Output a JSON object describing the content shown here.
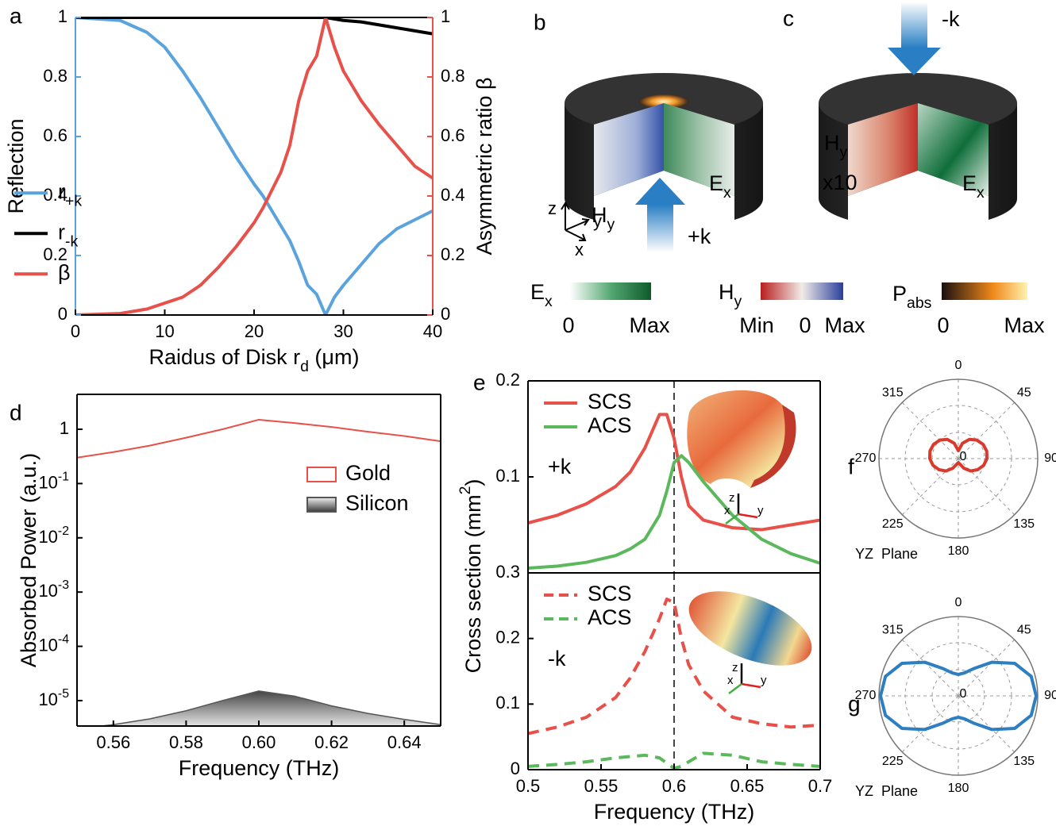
{
  "chart_data": [
    {
      "panel": "a",
      "type": "line",
      "x_label": {
        "text": "Raidus of Disk r",
        "sub": "d",
        "tail": " (μm)"
      },
      "y_label": "Reflection",
      "y2_label": "Asymmetric ratio β",
      "x": [
        0,
        5,
        8,
        10,
        12,
        14,
        16,
        18,
        20,
        21,
        22,
        23,
        24,
        25,
        26,
        27,
        28,
        29,
        30,
        32,
        34,
        36,
        38,
        40
      ],
      "series": [
        {
          "name": {
            "text": "r",
            "sub": "+k"
          },
          "color": "#5ba3dc",
          "values": [
            1,
            0.99,
            0.95,
            0.9,
            0.82,
            0.73,
            0.63,
            0.53,
            0.44,
            0.4,
            0.35,
            0.3,
            0.25,
            0.18,
            0.1,
            0.07,
            0,
            0.06,
            0.1,
            0.17,
            0.24,
            0.29,
            0.32,
            0.35
          ]
        },
        {
          "name": {
            "text": "r",
            "sub": "-k"
          },
          "color": "#000000",
          "values": [
            1,
            1,
            1,
            1,
            1,
            1,
            1,
            1,
            1,
            1,
            1,
            1,
            1,
            1,
            1,
            1,
            1,
            0.995,
            0.99,
            0.985,
            0.975,
            0.965,
            0.955,
            0.945
          ]
        },
        {
          "name": "β",
          "color": "#e8504a",
          "axis": "y2",
          "values": [
            0,
            0.005,
            0.02,
            0.04,
            0.06,
            0.1,
            0.16,
            0.23,
            0.31,
            0.36,
            0.42,
            0.48,
            0.57,
            0.72,
            0.82,
            0.87,
            1,
            0.9,
            0.82,
            0.72,
            0.64,
            0.57,
            0.5,
            0.46
          ]
        }
      ],
      "xlim": [
        0,
        40
      ],
      "xticks": [
        0,
        10,
        20,
        30,
        40
      ],
      "ylim": [
        0,
        1
      ],
      "yticks": [
        0,
        0.2,
        0.4,
        0.6,
        0.8,
        1
      ],
      "y2lim": [
        0,
        1
      ],
      "y2ticks": [
        0,
        0.2,
        0.4,
        0.6,
        0.8,
        1
      ],
      "ycolor": "#5ba3dc",
      "y2color": "#e8504a",
      "legend": "center-left"
    },
    {
      "panel": "d",
      "type": "line",
      "log_y": true,
      "x_label": "Frequency (THz)",
      "y_label": "Absorbed Power (a.u.)",
      "x": [
        0.55,
        0.56,
        0.57,
        0.58,
        0.59,
        0.6,
        0.61,
        0.62,
        0.63,
        0.64,
        0.65
      ],
      "series": [
        {
          "name": "Gold",
          "color": "#e8504a",
          "values": [
            0.3,
            0.38,
            0.5,
            0.7,
            1.0,
            1.5,
            1.3,
            1.1,
            0.9,
            0.75,
            0.6
          ]
        },
        {
          "name": "Silicon",
          "color": "#555555",
          "fill": true,
          "values": [
            3e-06,
            3.6e-06,
            4.6e-06,
            6.5e-06,
            1e-05,
            1.5e-05,
            1.2e-05,
            8e-06,
            5.8e-06,
            4.5e-06,
            3.6e-06
          ]
        }
      ],
      "xlim": [
        0.55,
        0.65
      ],
      "xticks": [
        0.56,
        0.58,
        {
          "value": 0.6,
          "label": "0.60"
        },
        0.62,
        0.64
      ],
      "ylim": [
        3.4e-06,
        4.4
      ],
      "yticks": [
        1,
        {
          "value": 0.1,
          "label": "10",
          "sup": "-1"
        },
        {
          "value": 0.01,
          "label": "10",
          "sup": "-2"
        },
        {
          "value": 0.001,
          "label": "10",
          "sup": "-3"
        },
        {
          "value": 0.0001,
          "label": "10",
          "sup": "-4"
        },
        {
          "value": 1e-05,
          "label": "10",
          "sup": "-5"
        }
      ],
      "legend": "upper-right",
      "legend_marker": "box"
    },
    {
      "panel": "e",
      "type": "line",
      "y_label": {
        "text": "Cross section (mm",
        "sup": "2",
        "tail": ")"
      },
      "annotation": "+k",
      "inset_axes": [
        "z",
        "x",
        "y"
      ],
      "x": [
        0.5,
        0.52,
        0.54,
        0.56,
        0.57,
        0.58,
        0.59,
        0.595,
        0.6,
        0.605,
        0.61,
        0.62,
        0.64,
        0.66,
        0.68,
        0.7
      ],
      "series": [
        {
          "name": "SCS",
          "color": "#e8504a",
          "values": [
            0.052,
            0.06,
            0.072,
            0.09,
            0.105,
            0.13,
            0.165,
            0.165,
            0.14,
            0.1,
            0.07,
            0.055,
            0.047,
            0.045,
            0.05,
            0.055
          ]
        },
        {
          "name": "ACS",
          "color": "#5cb85c",
          "values": [
            0.005,
            0.007,
            0.011,
            0.018,
            0.025,
            0.035,
            0.06,
            0.085,
            0.115,
            0.122,
            0.115,
            0.095,
            0.06,
            0.035,
            0.02,
            0.01
          ]
        }
      ],
      "xlim": [
        0.5,
        0.7
      ],
      "ylim": [
        0,
        0.2
      ],
      "yticks": [
        0.1,
        0.2
      ],
      "vline": 0.6,
      "legend": "upper-left"
    },
    {
      "type": "line",
      "x_label": "Frequency (THz)",
      "annotation": "-k",
      "inset_axes": [
        "z",
        "x",
        "y"
      ],
      "x": [
        0.5,
        0.52,
        0.54,
        0.56,
        0.57,
        0.58,
        0.59,
        0.595,
        0.6,
        0.605,
        0.61,
        0.62,
        0.64,
        0.66,
        0.68,
        0.7
      ],
      "series": [
        {
          "name": "SCS",
          "color": "#e8504a",
          "dash": true,
          "values": [
            0.055,
            0.065,
            0.08,
            0.11,
            0.14,
            0.18,
            0.23,
            0.26,
            0.255,
            0.2,
            0.16,
            0.12,
            0.08,
            0.07,
            0.065,
            0.068
          ]
        },
        {
          "name": "ACS",
          "color": "#5cb85c",
          "dash": true,
          "values": [
            0.005,
            0.008,
            0.012,
            0.018,
            0.02,
            0.022,
            0.018,
            0.01,
            0.002,
            0.005,
            0.012,
            0.025,
            0.022,
            0.012,
            0.008,
            0.005
          ]
        }
      ],
      "xlim": [
        0.5,
        0.7
      ],
      "xticks": [
        0.5,
        0.55,
        0.6,
        0.65,
        0.7
      ],
      "ylim": [
        0,
        0.3
      ],
      "yticks": [
        0,
        0.1,
        0.2,
        0.3
      ],
      "vline": 0.6,
      "legend": "upper-left"
    },
    {
      "panel": "f",
      "type": "polar",
      "plane_label": "YZ  Plane",
      "theta": [
        0,
        15,
        30,
        45,
        60,
        75,
        90,
        105,
        120,
        135,
        150,
        165,
        180,
        195,
        210,
        225,
        240,
        255,
        270,
        285,
        300,
        315,
        330,
        345
      ],
      "series": [
        {
          "color": "#d93a2b",
          "values": [
            0.1,
            0.2,
            0.28,
            0.33,
            0.36,
            0.37,
            0.36,
            0.33,
            0.28,
            0.22,
            0.14,
            0.07,
            0.05,
            0.07,
            0.14,
            0.22,
            0.28,
            0.33,
            0.36,
            0.37,
            0.36,
            0.33,
            0.28,
            0.2
          ]
        }
      ],
      "rlim": [
        0,
        1
      ],
      "rticks": [
        0
      ],
      "rgrid": [
        0.33,
        0.67
      ],
      "thetaticks": [
        0,
        45,
        90,
        135,
        180,
        225,
        270,
        315
      ]
    },
    {
      "panel": "g",
      "type": "polar",
      "plane_label": "YZ  Plane",
      "theta": [
        0,
        15,
        30,
        45,
        60,
        75,
        90,
        105,
        120,
        135,
        150,
        165,
        180,
        195,
        210,
        225,
        240,
        255,
        270,
        285,
        300,
        315,
        330,
        345
      ],
      "series": [
        {
          "color": "#2e7fc1",
          "values": [
            0.27,
            0.3,
            0.4,
            0.6,
            0.82,
            0.95,
            0.98,
            0.95,
            0.82,
            0.6,
            0.4,
            0.3,
            0.27,
            0.3,
            0.4,
            0.6,
            0.82,
            0.95,
            0.98,
            0.95,
            0.82,
            0.6,
            0.4,
            0.3
          ]
        }
      ],
      "rlim": [
        0,
        1
      ],
      "rticks": [
        0
      ],
      "rgrid": [
        0.33,
        0.67
      ],
      "thetaticks": [
        0,
        45,
        90,
        135,
        180,
        225,
        270,
        315
      ]
    }
  ],
  "illustrations": {
    "b": {
      "label": "b",
      "h": {
        "text": "H",
        "sub": "y"
      },
      "e": {
        "text": "E",
        "sub": "x"
      },
      "k": "+k",
      "axes": [
        "z",
        "y",
        "x"
      ]
    },
    "c": {
      "label": "c",
      "k": "-k",
      "h": {
        "text": "H",
        "sub": "y"
      },
      "scale": "x10",
      "e": {
        "text": "E",
        "sub": "x"
      }
    },
    "colorbars": [
      {
        "title": {
          "text": "E",
          "sub": "x"
        },
        "ticks": [
          "0",
          "Max"
        ]
      },
      {
        "title": {
          "text": "H",
          "sub": "y"
        },
        "ticks": [
          "Min",
          "0",
          "Max"
        ]
      },
      {
        "title": {
          "text": "P",
          "sub": "abs"
        },
        "ticks": [
          "0",
          "Max"
        ]
      }
    ]
  }
}
